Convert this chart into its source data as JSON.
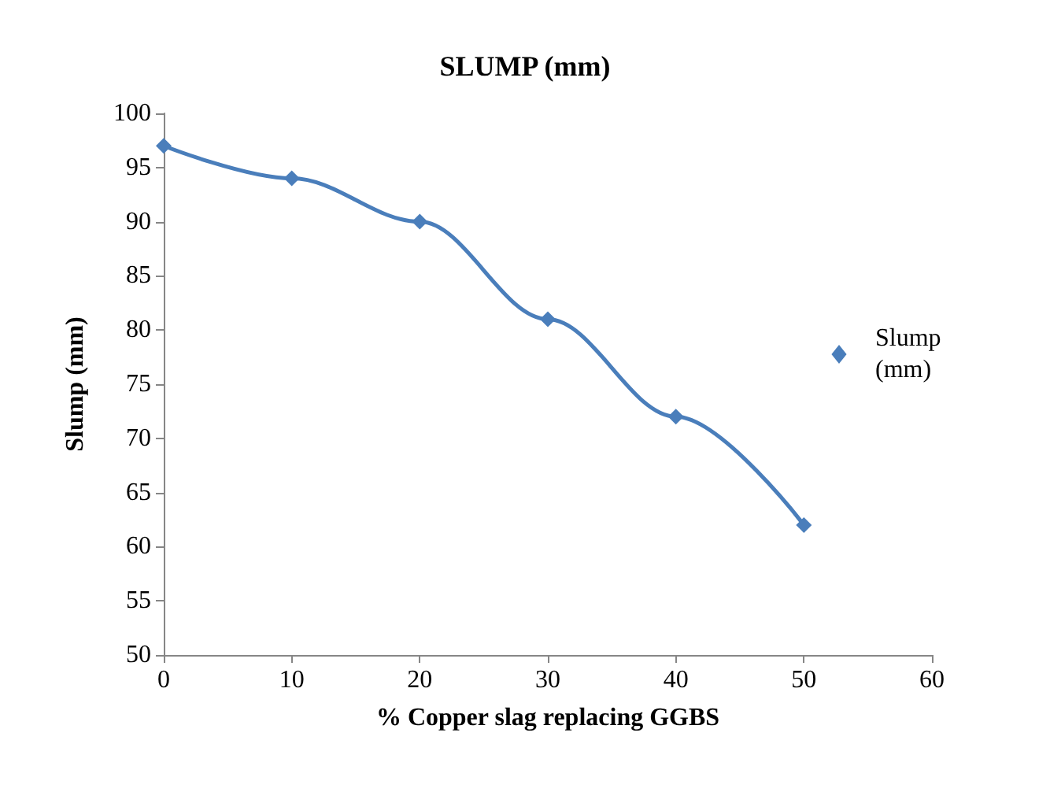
{
  "chart_data": {
    "type": "line",
    "title": "SLUMP (mm)",
    "xlabel": "% Copper slag replacing GGBS",
    "ylabel": "Slump (mm)",
    "x": [
      0,
      10,
      20,
      30,
      40,
      50
    ],
    "series": [
      {
        "name": "Slump (mm)",
        "color": "#4a7ebb",
        "values": [
          97,
          94,
          90,
          81,
          72,
          62
        ]
      }
    ],
    "xlim": [
      0,
      60
    ],
    "xticks": [
      0,
      10,
      20,
      30,
      40,
      50,
      60
    ],
    "ylim": [
      50,
      100
    ],
    "yticks": [
      50,
      55,
      60,
      65,
      70,
      75,
      80,
      85,
      90,
      95,
      100
    ],
    "grid": false,
    "legend": "right",
    "marker": "diamond",
    "line_style": "solid"
  }
}
